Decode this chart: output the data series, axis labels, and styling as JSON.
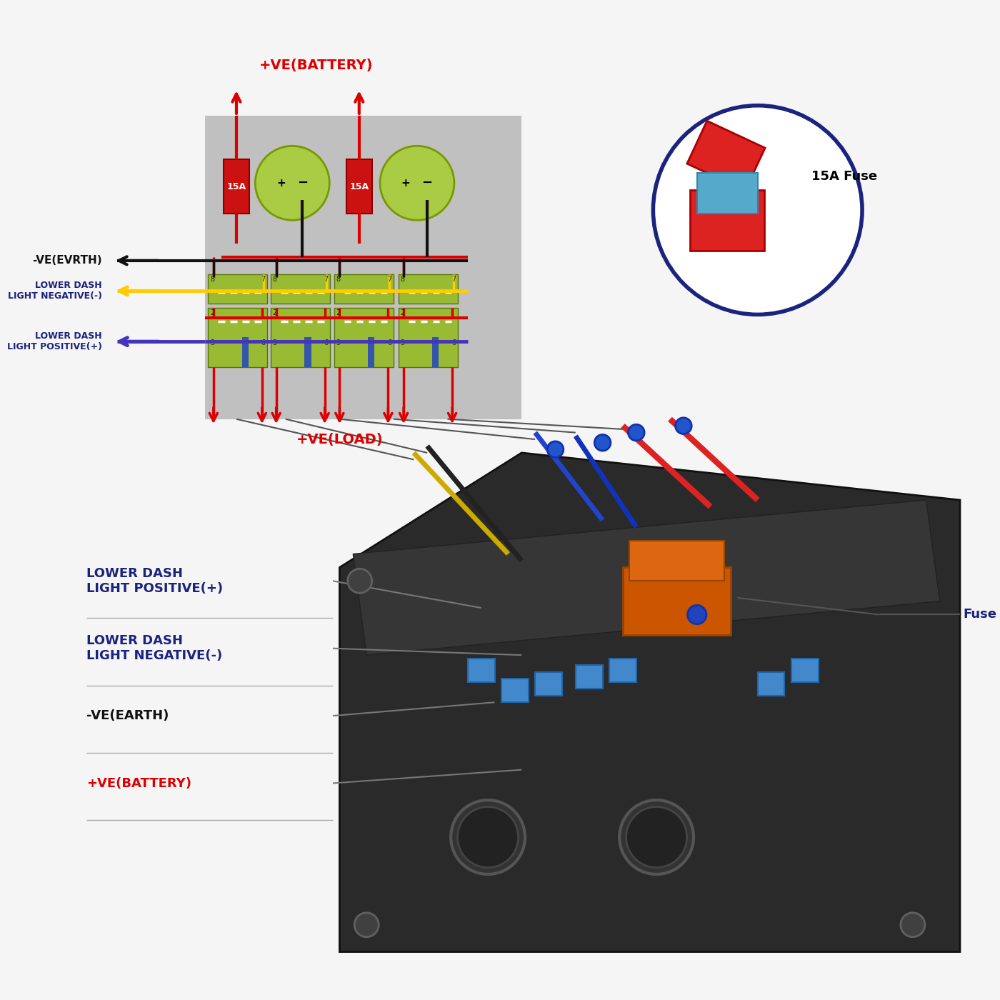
{
  "bg_color": "#f5f5f5",
  "diagram_bg": "#bbbbbb",
  "battery_green": "#aacc44",
  "fuse_red": "#cc1111",
  "switch_green": "#99bb33",
  "wire_red": "#dd0000",
  "wire_black": "#111111",
  "wire_yellow": "#ffcc00",
  "wire_purple": "#4433bb",
  "text_red": "#dd0000",
  "text_blue": "#1a237e",
  "text_black": "#111111",
  "title_batt": "+VE(BATTERY)",
  "title_load": "+VE(LOAD)",
  "earth_label": "-VE(EVRTH)",
  "lower_neg": "LOWER DASH\nLIGHT NEGATIVE(-)",
  "lower_pos": "LOWER DASH\nLIGHT POSITIVE(+)",
  "lower_pos2": "LOWER DASH\nLIGHT POSITIVE(+)",
  "lower_neg2": "LOWER DASH\nLIGHT NEGATIVE(-)",
  "earth2": "-VE(EARTH)",
  "batt2": "+VE(BATTERY)",
  "fuse_label": "15A Fuse",
  "fuse_label2": "Fuse"
}
